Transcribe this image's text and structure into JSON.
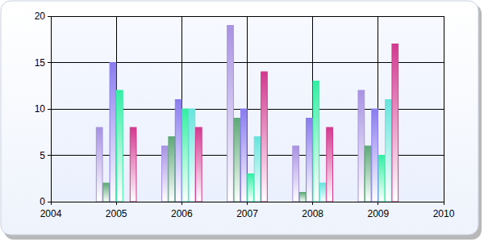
{
  "chart_data": {
    "type": "bar",
    "x": [
      2005,
      2006,
      2007,
      2008,
      2009
    ],
    "series": [
      {
        "color": "#a892e2",
        "values": [
          8,
          6,
          19,
          6,
          12
        ]
      },
      {
        "color": "#5fa878",
        "values": [
          2,
          7,
          9,
          1,
          6
        ]
      },
      {
        "color": "#8a7cee",
        "values": [
          15,
          11,
          10,
          9,
          10
        ]
      },
      {
        "color": "#34eea4",
        "values": [
          12,
          10,
          3,
          13,
          5
        ]
      },
      {
        "color": "#66e4dc",
        "values": [
          0,
          10,
          7,
          2,
          11
        ]
      },
      {
        "color": "#d23a90",
        "values": [
          8,
          8,
          14,
          8,
          17
        ]
      }
    ],
    "xlim": [
      2004,
      2010
    ],
    "xticks": [
      2004,
      2005,
      2006,
      2007,
      2008,
      2009,
      2010
    ],
    "ylim": [
      0,
      20
    ],
    "yticks": [
      0,
      5,
      10,
      15,
      20
    ],
    "grid": true
  }
}
